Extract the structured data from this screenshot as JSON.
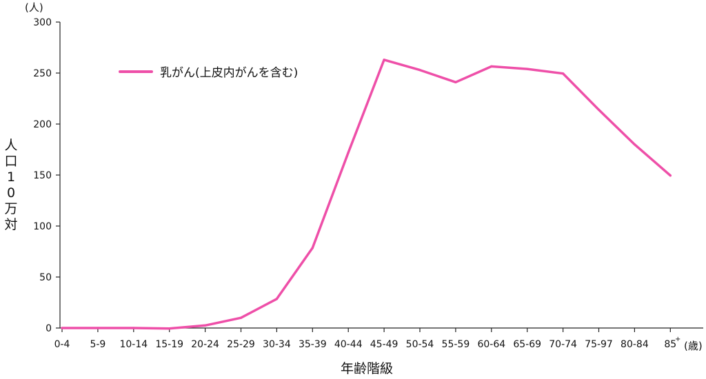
{
  "chart_data": {
    "type": "line",
    "categories": [
      "0-4",
      "5-9",
      "10-14",
      "15-19",
      "20-24",
      "25-29",
      "30-34",
      "35-39",
      "40-44",
      "45-49",
      "50-54",
      "55-59",
      "60-64",
      "65-69",
      "70-74",
      "75-97",
      "80-84",
      "85"
    ],
    "series": [
      {
        "name": "乳がん(上皮内がんを含む)",
        "color": "#ee4fa8",
        "values": [
          0,
          0,
          0,
          -0.5,
          2.5,
          10,
          28.5,
          78.5,
          172,
          263,
          253,
          241,
          256.5,
          254,
          249.5,
          214,
          180,
          149.5
        ]
      }
    ],
    "y_unit": "(人)",
    "ylabel": "人口10万対",
    "xlabel": "年齢階級",
    "x_unit": "(歳)",
    "last_category_superscript": "+",
    "ylim": [
      0,
      300
    ],
    "yticks": [
      0,
      50,
      100,
      150,
      200,
      250,
      300
    ],
    "grid": false,
    "legend_position": "upper-left"
  }
}
